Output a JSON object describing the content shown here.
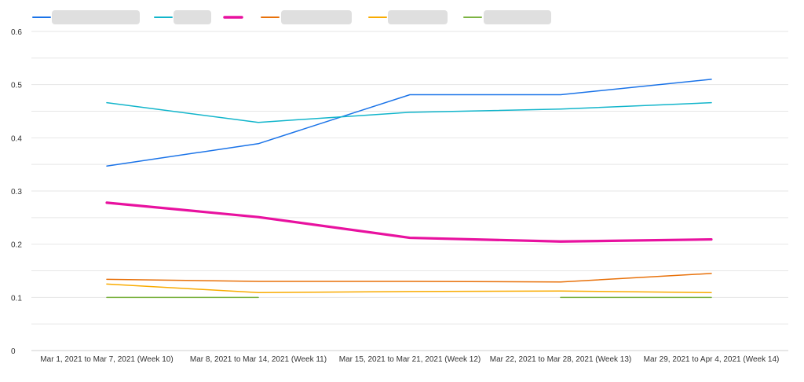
{
  "chart_data": {
    "type": "line",
    "title": "",
    "xlabel": "",
    "ylabel": "",
    "ylim": [
      0,
      0.6
    ],
    "yticks": [
      "0",
      "0.1",
      "0.2",
      "0.3",
      "0.4",
      "0.5",
      "0.6"
    ],
    "categories": [
      "Mar 1, 2021 to Mar 7, 2021 (Week 10)",
      "Mar 8, 2021 to Mar 14, 2021 (Week 11)",
      "Mar 15, 2021 to Mar 21, 2021 (Week 12)",
      "Mar 22, 2021 to Mar 28, 2021 (Week 13)",
      "Mar 29, 2021 to Apr 4, 2021 (Week 14)"
    ],
    "grid": true,
    "legend_position": "top-left",
    "legend_names_obscured": true,
    "series": [
      {
        "color": "#1a73e8",
        "emphasis": false,
        "values": [
          0.347,
          0.389,
          0.481,
          0.481,
          0.51
        ]
      },
      {
        "color": "#12b5cb",
        "emphasis": false,
        "values": [
          0.466,
          0.429,
          0.448,
          0.454,
          0.466
        ]
      },
      {
        "color": "#e8119f",
        "emphasis": true,
        "values": [
          0.278,
          0.251,
          0.212,
          0.205,
          0.209
        ]
      },
      {
        "color": "#e8710a",
        "emphasis": false,
        "values": [
          0.134,
          0.13,
          0.13,
          0.129,
          0.145
        ]
      },
      {
        "color": "#f9ab00",
        "emphasis": false,
        "values": [
          0.125,
          0.109,
          0.111,
          0.112,
          0.109
        ]
      },
      {
        "color": "#7cb342",
        "emphasis": false,
        "values": [
          0.1,
          0.1,
          null,
          0.1,
          0.1
        ]
      }
    ]
  }
}
